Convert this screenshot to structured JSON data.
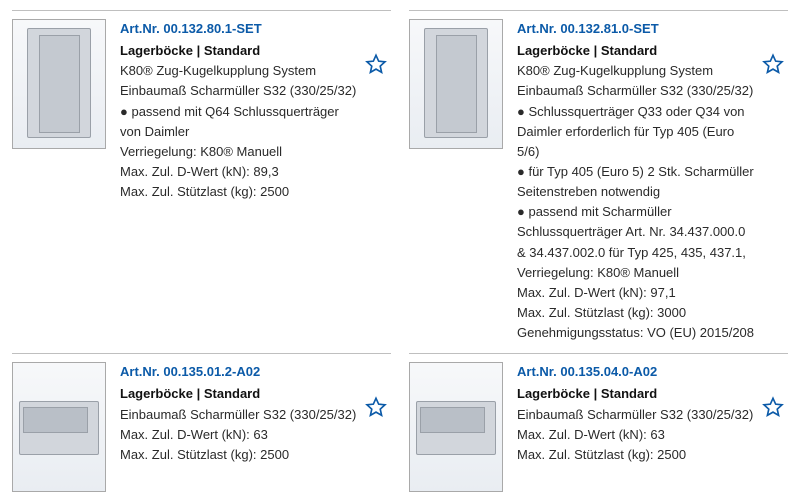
{
  "colors": {
    "link": "#0b5aa8",
    "text": "#222222",
    "border": "#bfbfbf",
    "thumb_bg_top": "#f7f8fa",
    "thumb_bg_bottom": "#e9edf2"
  },
  "products": [
    {
      "art_nr": "Art.Nr. 00.132.80.1-SET",
      "title": "Lagerböcke | Standard",
      "thumb_variant": "tall",
      "lines": [
        "K80® Zug-Kugelkupplung System",
        "Einbaumaß Scharmüller S32 (330/25/32)",
        "● passend mit Q64 Schlussquerträger von Daimler",
        "Verriegelung: K80® Manuell",
        "Max. Zul. D-Wert (kN): 89,3",
        "Max. Zul. Stützlast (kg): 2500"
      ]
    },
    {
      "art_nr": "Art.Nr. 00.132.81.0-SET",
      "title": "Lagerböcke | Standard",
      "thumb_variant": "tall",
      "lines": [
        "K80® Zug-Kugelkupplung System",
        "Einbaumaß Scharmüller S32 (330/25/32)",
        "● Schlussquerträger Q33 oder Q34 von Daimler erforderlich für Typ 405 (Euro 5/6)",
        "● für Typ 405 (Euro 5) 2 Stk. Scharmüller Seitenstreben notwendig",
        "● passend mit Scharmüller Schlussquerträger Art. Nr. 34.437.000.0 & 34.437.002.0 für Typ 425, 435, 437.1,",
        "Verriegelung: K80® Manuell",
        "Max. Zul. D-Wert (kN): 97,1",
        "Max. Zul. Stützlast (kg): 3000",
        "Genehmigungsstatus: VO (EU) 2015/208"
      ]
    },
    {
      "art_nr": "Art.Nr. 00.135.01.2-A02",
      "title": "Lagerböcke | Standard",
      "thumb_variant": "low",
      "lines": [
        "Einbaumaß Scharmüller S32 (330/25/32)",
        "Max. Zul. D-Wert (kN): 63",
        "Max. Zul. Stützlast (kg): 2500"
      ]
    },
    {
      "art_nr": "Art.Nr. 00.135.04.0-A02",
      "title": "Lagerböcke | Standard",
      "thumb_variant": "low",
      "lines": [
        "Einbaumaß Scharmüller S32 (330/25/32)",
        "Max. Zul. D-Wert (kN): 63",
        "Max. Zul. Stützlast (kg): 2500"
      ]
    }
  ]
}
